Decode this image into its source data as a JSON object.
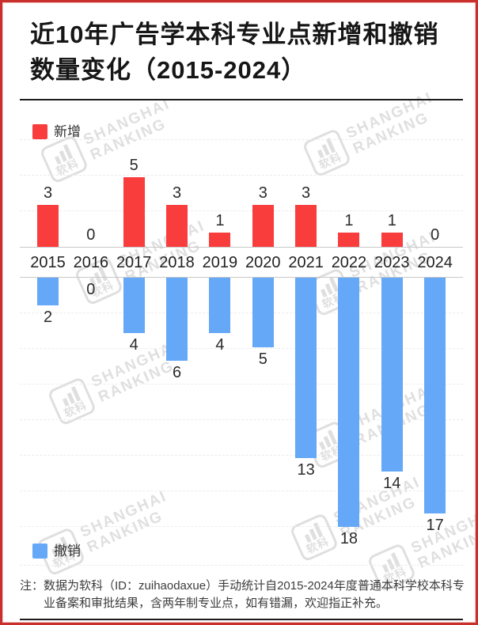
{
  "title": "近10年广告学本科专业点新增和撤销数量变化（2015-2024）",
  "legend_top": {
    "label": "新增"
  },
  "legend_bottom": {
    "label": "撤销"
  },
  "watermark": {
    "brand_line1": "SHANGHAI",
    "brand_line2": "RANKING",
    "logo_text": "软科"
  },
  "note": {
    "prefix": "注：",
    "text": "数据为软科（ID：zuihaodaxue）手动统计自2015-2024年度普通本科学校本科专业备案和审批结果，含两年制专业点，如有错漏，欢迎指正补充。"
  },
  "colors": {
    "new": "#f93d3d",
    "removed": "#64a8f7",
    "frame_border": "#c9302c",
    "axis": "#c8c8c8"
  },
  "chart_data": {
    "type": "bar",
    "categories": [
      "2015",
      "2016",
      "2017",
      "2018",
      "2019",
      "2020",
      "2021",
      "2022",
      "2023",
      "2024"
    ],
    "series": [
      {
        "name": "新增",
        "color": "#f93d3d",
        "direction": "up",
        "values": [
          3,
          0,
          5,
          3,
          1,
          3,
          3,
          1,
          1,
          0
        ]
      },
      {
        "name": "撤销",
        "color": "#64a8f7",
        "direction": "down",
        "values": [
          2,
          0,
          4,
          6,
          4,
          5,
          13,
          18,
          14,
          17
        ]
      }
    ],
    "title": "近10年广告学本科专业点新增和撤销数量变化（2015-2024）",
    "xlabel": "",
    "ylabel": "",
    "ylim_up": [
      0,
      5
    ],
    "ylim_down": [
      0,
      18
    ],
    "value_labels": true,
    "grid": "dashed-horizontal",
    "legend_position": "new: top-left, removed: bottom-left"
  }
}
